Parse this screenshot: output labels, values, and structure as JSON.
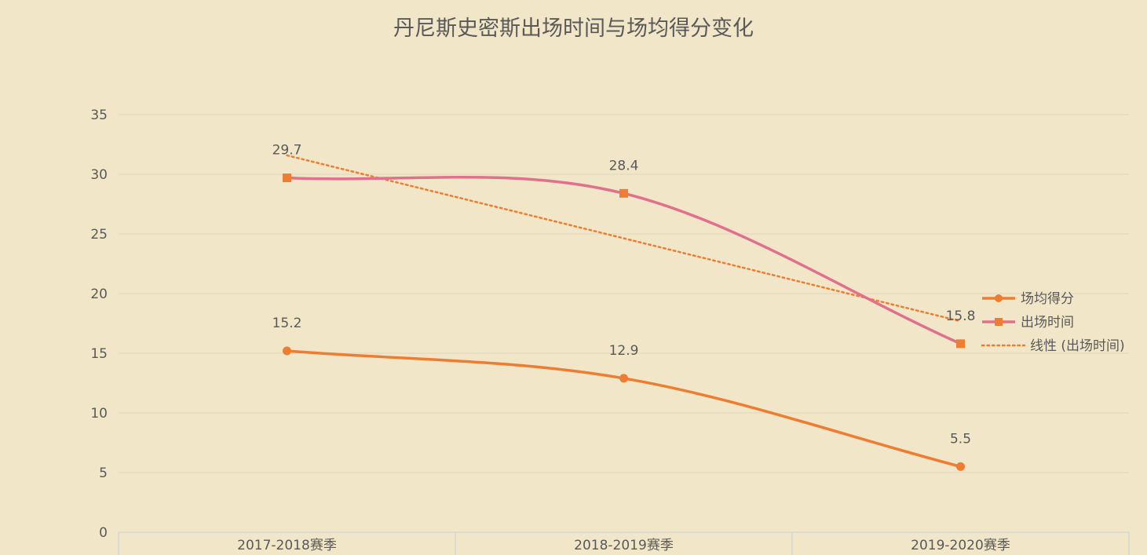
{
  "chart_data": {
    "type": "line",
    "title": "丹尼斯史密斯出场时间与场均得分变化",
    "categories": [
      "2017-2018赛季",
      "2018-2019赛季",
      "2019-2020赛季"
    ],
    "ylim": [
      0,
      35
    ],
    "yticks": [
      0,
      5,
      10,
      15,
      20,
      25,
      30,
      35
    ],
    "grid": true,
    "legend_position": "right",
    "series": [
      {
        "name": "场均得分",
        "values": [
          15.2,
          12.9,
          5.5
        ],
        "labels": [
          "15.2",
          "12.9",
          "5.5"
        ],
        "color": "#ed7d31",
        "marker": "circle",
        "smooth": true
      },
      {
        "name": "出场时间",
        "values": [
          29.7,
          28.4,
          15.8
        ],
        "labels": [
          "29.7",
          "28.4",
          "15.8"
        ],
        "color": "#e0708b",
        "marker": "square",
        "marker_color": "#ed7d31",
        "smooth": true
      }
    ],
    "trendline": {
      "name": "线性 (出场时间)",
      "of": "出场时间",
      "type": "linear",
      "color": "#ed7d31",
      "style": "dotted"
    }
  }
}
